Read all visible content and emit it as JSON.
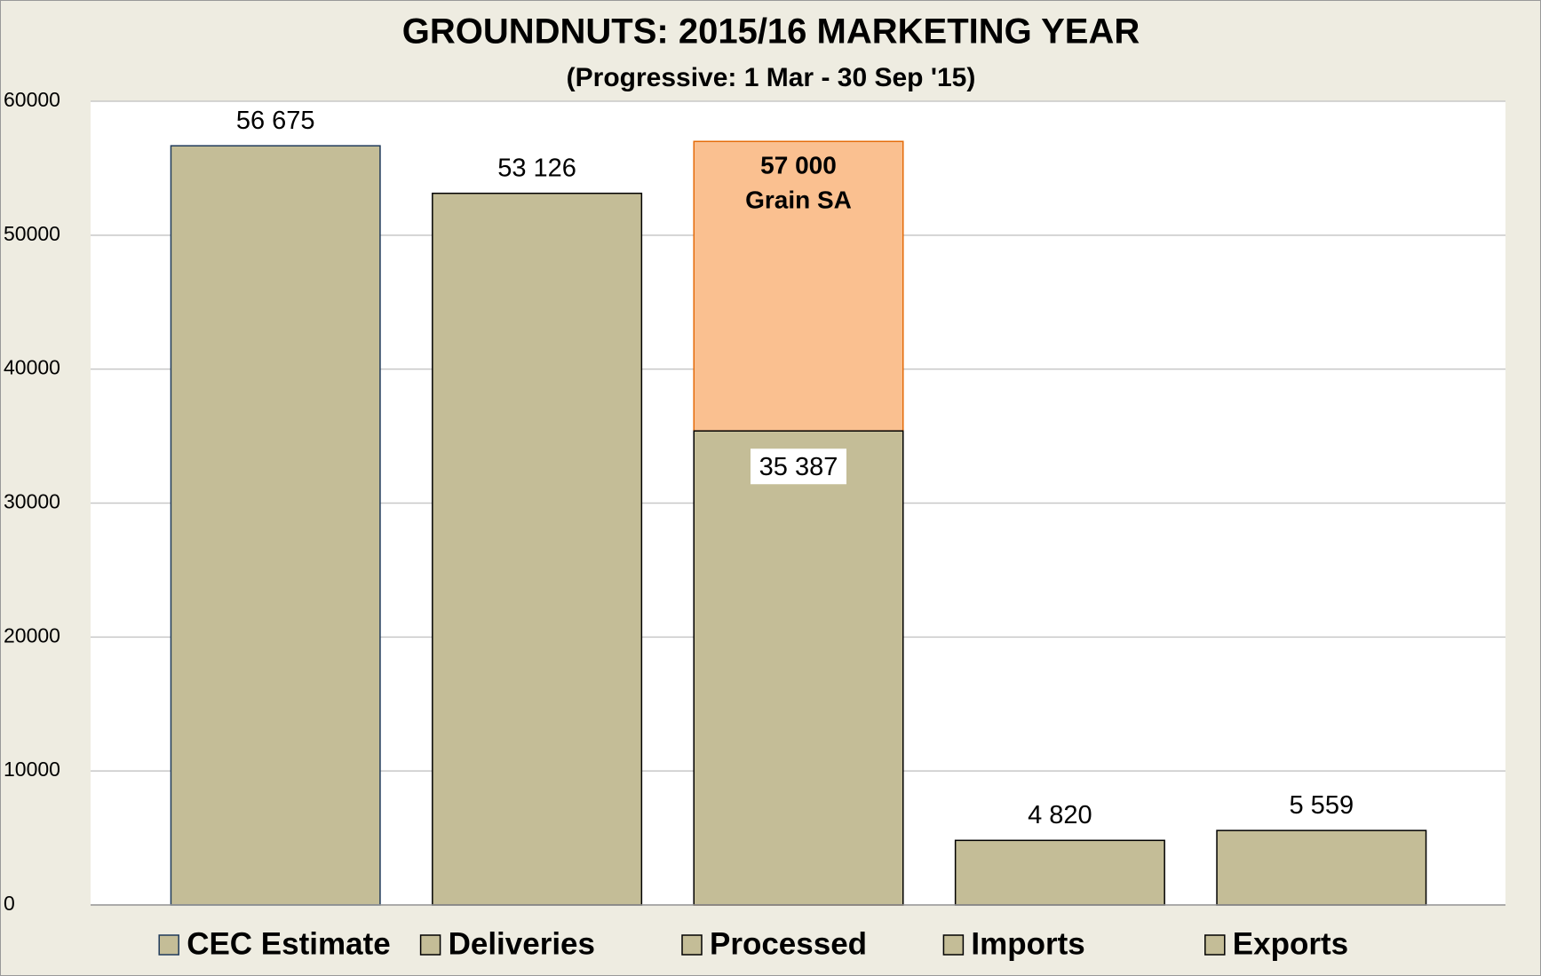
{
  "chart_data": {
    "type": "bar",
    "title": "GROUNDNUTS: 2015/16 MARKETING YEAR",
    "subtitle": "(Progressive:  1 Mar  - 30 Sep '15)",
    "categories": [
      "CEC Estimate",
      "Deliveries",
      "Processed",
      "Imports",
      "Exports"
    ],
    "series": [
      {
        "color": "#c4bd97",
        "values": [
          56675,
          53126,
          35387,
          4820,
          5559
        ],
        "value_labels": [
          "56 675",
          "53 126",
          "35 387",
          "4 820",
          "5 559"
        ]
      },
      {
        "name": "Grain SA",
        "color": "#fac090",
        "values": [
          null,
          null,
          57000,
          null,
          null
        ],
        "value_labels": [
          null,
          null,
          "57 000",
          null,
          null
        ]
      }
    ],
    "ylim": [
      0,
      60000
    ],
    "yticks": [
      0,
      10000,
      20000,
      30000,
      40000,
      50000,
      60000
    ],
    "grid": true
  }
}
